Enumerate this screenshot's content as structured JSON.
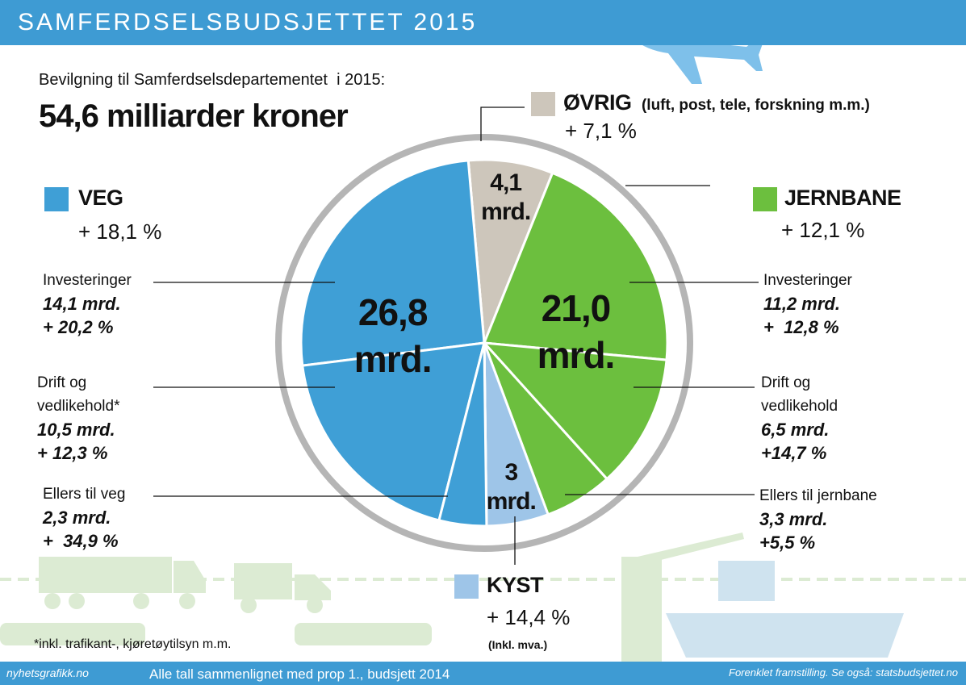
{
  "header": {
    "title": "SAMFERDSELSBUDSJETTET 2015"
  },
  "intro": "Bevilgning til Samferdselsdepartementet  i 2015:",
  "total": "54,6 milliarder kroner",
  "chart_data": {
    "type": "pie",
    "segments": [
      {
        "name": "ØVRIG",
        "note": "(luft, post, tele, forskning m.m.)",
        "change": "+ 7,1 %",
        "value": 4.1,
        "value_label": "4,1 mrd.",
        "color": "#cdc6bb"
      },
      {
        "name": "JERNBANE",
        "change": "+ 12,1 %",
        "value": 21.0,
        "value_label": "21,0 mrd.",
        "color": "#6cbf3e",
        "parts": [
          {
            "name": "Investeringer",
            "value": 11.2,
            "value_label": "11,2 mrd.",
            "change": "+  12,8 %"
          },
          {
            "name": "Drift og vedlikehold",
            "value": 6.5,
            "value_label": "6,5 mrd.",
            "change": "+14,7 %"
          },
          {
            "name": "Ellers til jernbane",
            "value": 3.3,
            "value_label": "3,3 mrd.",
            "change": "+5,5 %"
          }
        ]
      },
      {
        "name": "KYST",
        "change": "+ 14,4 %",
        "note": "(Inkl. mva.)",
        "value": 3,
        "value_label": "3 mrd.",
        "color": "#9ec5e8"
      },
      {
        "name": "VEG",
        "change": "+ 18,1 %",
        "value": 26.8,
        "value_label": "26,8 mrd.",
        "color": "#3f9fd6",
        "parts": [
          {
            "name": "Investeringer",
            "value": 14.1,
            "value_label": "14,1 mrd.",
            "change": "+ 20,2 %"
          },
          {
            "name": "Drift og vedlikehold*",
            "value": 10.5,
            "value_label": "10,5 mrd.",
            "change": "+ 12,3 %"
          },
          {
            "name": "Ellers til veg",
            "value": 2.3,
            "value_label": "2,3 mrd.",
            "change": "+  34,9 %"
          }
        ]
      }
    ]
  },
  "footnote": "*inkl. trafikant-, kjøretøytilsyn m.m.",
  "footer": {
    "left": "nyhetsgrafikk.no",
    "center": "Alle tall sammenlignet med prop 1., budsjett 2014",
    "right": "Forenklet framstilling. Se også: statsbudsjettet.no"
  }
}
